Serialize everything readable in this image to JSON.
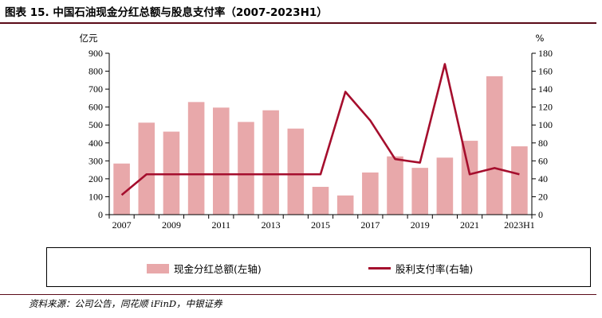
{
  "title": "图表 15. 中国石油现金分红总额与股息支付率（2007-2023H1）",
  "source": "资料来源：公司公告，同花顺 iFinD，中银证券",
  "colors": {
    "bar": "#e8a8aa",
    "line": "#a50e2d",
    "title_rule": "#5a0a18"
  },
  "chart_data": {
    "type": "bar+line",
    "categories": [
      "2007",
      "2008",
      "2009",
      "2010",
      "2011",
      "2012",
      "2013",
      "2014",
      "2015",
      "2016",
      "2017",
      "2018",
      "2019",
      "2020",
      "2021",
      "2022",
      "2023H1"
    ],
    "x_tick_labels": [
      "2007",
      "",
      "2009",
      "",
      "2011",
      "",
      "2013",
      "",
      "2015",
      "",
      "2017",
      "",
      "2019",
      "",
      "2021",
      "",
      "2023H1"
    ],
    "series": [
      {
        "name": "现金分红总额(左轴)",
        "type": "bar",
        "axis": "left",
        "values": [
          285,
          513,
          463,
          628,
          597,
          517,
          582,
          480,
          155,
          107,
          235,
          325,
          261,
          318,
          412,
          772,
          381
        ]
      },
      {
        "name": "股利支付率(右轴)",
        "type": "line",
        "axis": "right",
        "values": [
          22,
          45,
          45,
          45,
          45,
          45,
          45,
          45,
          45,
          137,
          105,
          62,
          58,
          168,
          45,
          52,
          45
        ]
      }
    ],
    "left_axis": {
      "unit": "亿元",
      "ylim": [
        0,
        900
      ],
      "ticks": [
        0,
        100,
        200,
        300,
        400,
        500,
        600,
        700,
        800,
        900
      ]
    },
    "right_axis": {
      "unit": "%",
      "ylim": [
        0,
        180
      ],
      "ticks": [
        0,
        20,
        40,
        60,
        80,
        100,
        120,
        140,
        160,
        180
      ]
    },
    "grid": false,
    "legend_position": "bottom"
  }
}
